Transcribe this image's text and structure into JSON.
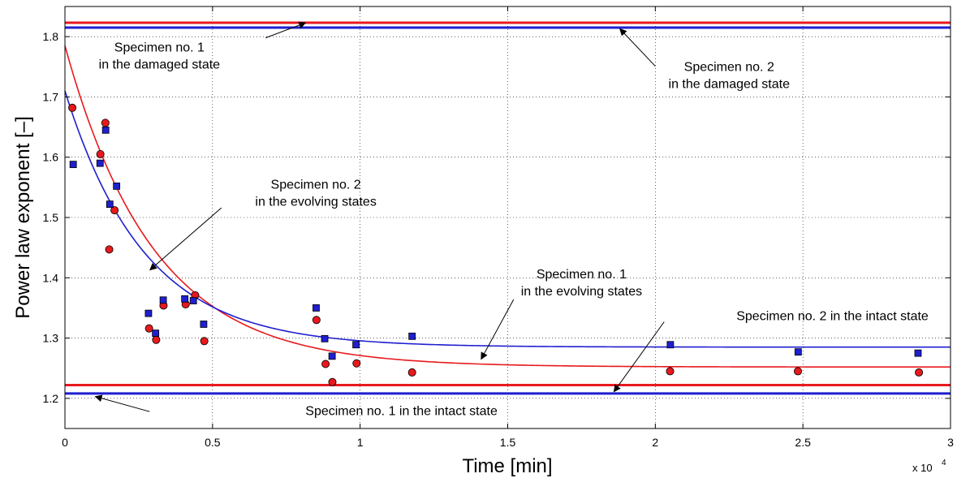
{
  "chart_data": {
    "type": "scatter",
    "title": "",
    "xlabel": "Time [min]",
    "ylabel": "Power law exponent [–]",
    "x_exponent_label": "x 10",
    "x_exponent_power": "4",
    "xlim": [
      0,
      30000
    ],
    "ylim": [
      1.15,
      1.85
    ],
    "xticks": [
      0,
      5000,
      10000,
      15000,
      20000,
      25000,
      30000
    ],
    "xtick_labels": [
      "0",
      "0.5",
      "1",
      "1.5",
      "2",
      "2.5",
      "3"
    ],
    "yticks": [
      1.2,
      1.3,
      1.4,
      1.5,
      1.6,
      1.7,
      1.8
    ],
    "ytick_labels": [
      "1.2",
      "1.3",
      "1.4",
      "1.5",
      "1.6",
      "1.7",
      "1.8"
    ],
    "grid": true,
    "colors": {
      "specimen1": "#e8191d",
      "specimen2": "#1f1fd0",
      "marker_edge": "#000000"
    },
    "series": [
      {
        "marker": "circle",
        "color": "#e8191d",
        "points": [
          [
            250,
            1.682
          ],
          [
            1200,
            1.605
          ],
          [
            1370,
            1.657
          ],
          [
            1500,
            1.447
          ],
          [
            1680,
            1.512
          ],
          [
            2850,
            1.316
          ],
          [
            3090,
            1.297
          ],
          [
            3340,
            1.354
          ],
          [
            4090,
            1.356
          ],
          [
            4410,
            1.371
          ],
          [
            4720,
            1.295
          ],
          [
            8520,
            1.33
          ],
          [
            8830,
            1.257
          ],
          [
            9060,
            1.227
          ],
          [
            9880,
            1.258
          ],
          [
            11760,
            1.243
          ],
          [
            20500,
            1.245
          ],
          [
            24830,
            1.245
          ],
          [
            28930,
            1.243
          ]
        ]
      },
      {
        "marker": "square",
        "color": "#1f1fd0",
        "points": [
          [
            280,
            1.588
          ],
          [
            1190,
            1.59
          ],
          [
            1380,
            1.645
          ],
          [
            1520,
            1.522
          ],
          [
            1750,
            1.552
          ],
          [
            2830,
            1.341
          ],
          [
            3070,
            1.308
          ],
          [
            3330,
            1.363
          ],
          [
            4060,
            1.365
          ],
          [
            4350,
            1.362
          ],
          [
            4700,
            1.323
          ],
          [
            8510,
            1.35
          ],
          [
            8800,
            1.299
          ],
          [
            9050,
            1.27
          ],
          [
            9860,
            1.289
          ],
          [
            11760,
            1.303
          ],
          [
            20510,
            1.289
          ],
          [
            24840,
            1.277
          ],
          [
            28900,
            1.275
          ]
        ]
      }
    ],
    "fits": [
      {
        "color": "#e8191d",
        "y0": 1.785,
        "y_inf": 1.252,
        "tau": 3000
      },
      {
        "color": "#1f1fd0",
        "y0": 1.71,
        "y_inf": 1.285,
        "tau": 2700
      }
    ],
    "reference_lines": [
      {
        "y": 1.823,
        "color": "#e8191d"
      },
      {
        "y": 1.815,
        "color": "#1f1fd0"
      },
      {
        "y": 1.222,
        "color": "#e8191d"
      },
      {
        "y": 1.208,
        "color": "#1f1fd0"
      }
    ],
    "annotations": [
      {
        "lines": [
          "Specimen no. 1",
          "in the damaged state"
        ],
        "text_x": 3200,
        "text_y": 1.775,
        "anchor": "middle",
        "arrow_from": [
          6800,
          1.798
        ],
        "arrow_to": [
          8150,
          1.823
        ]
      },
      {
        "lines": [
          "Specimen no. 2",
          "in the damaged state"
        ],
        "text_x": 22500,
        "text_y": 1.743,
        "anchor": "middle",
        "arrow_from": [
          20000,
          1.751
        ],
        "arrow_to": [
          18800,
          1.813
        ]
      },
      {
        "lines": [
          "Specimen no. 2",
          "in the evolving states"
        ],
        "text_x": 8500,
        "text_y": 1.548,
        "anchor": "middle",
        "arrow_from": [
          5300,
          1.516
        ],
        "arrow_to": [
          2880,
          1.413
        ]
      },
      {
        "lines": [
          "Specimen no. 1",
          "in the evolving states"
        ],
        "text_x": 17500,
        "text_y": 1.399,
        "anchor": "middle",
        "arrow_from": [
          15200,
          1.364
        ],
        "arrow_to": [
          14100,
          1.265
        ]
      },
      {
        "lines": [
          "Specimen no. 2 in the intact state"
        ],
        "text_x": 26000,
        "text_y": 1.33,
        "anchor": "middle",
        "arrow_from": [
          20300,
          1.327
        ],
        "arrow_to": [
          18600,
          1.211
        ]
      },
      {
        "lines": [
          "Specimen no. 1 in the intact state"
        ],
        "text_x": 11400,
        "text_y": 1.172,
        "anchor": "middle",
        "arrow_from": [
          2870,
          1.178
        ],
        "arrow_to": [
          1030,
          1.203
        ]
      }
    ]
  }
}
